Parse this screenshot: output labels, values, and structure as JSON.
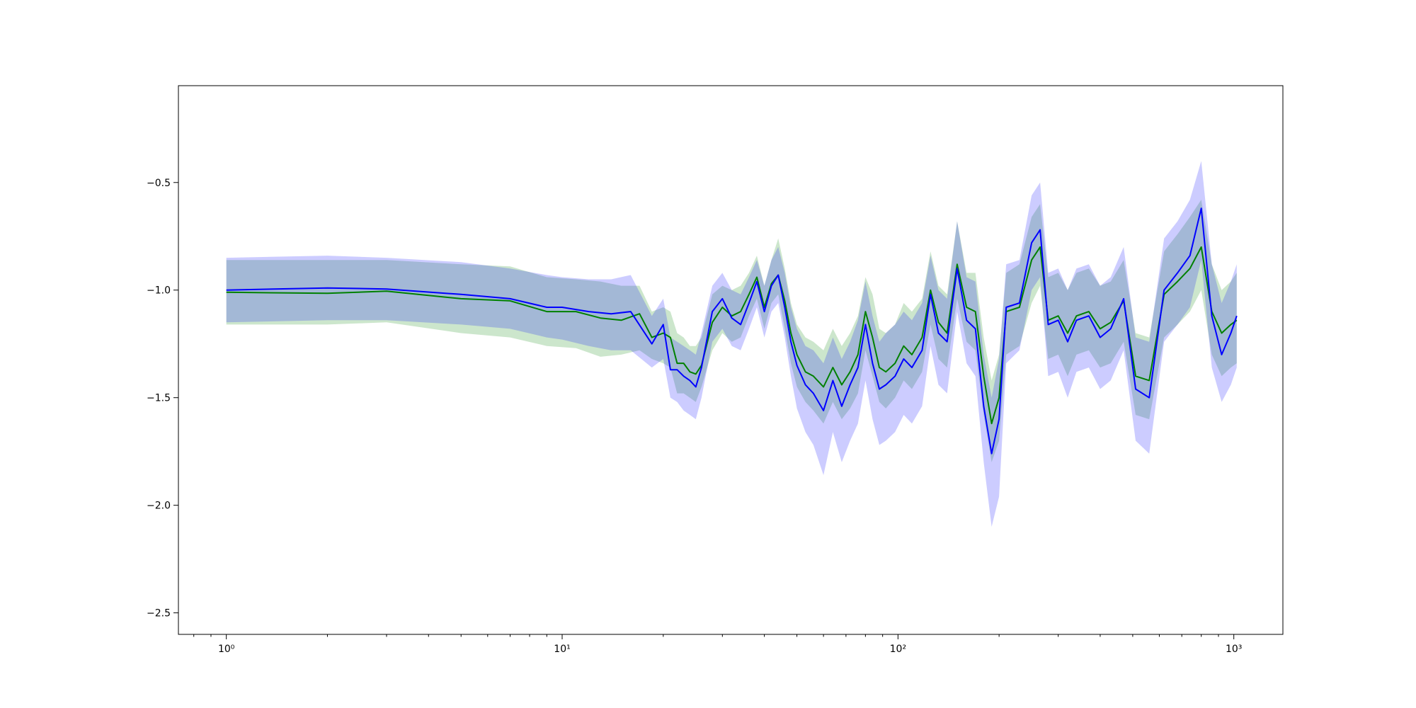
{
  "chart_data": {
    "type": "line",
    "xscale": "log",
    "xlim": [
      0.72,
      1400
    ],
    "ylim": [
      -2.6,
      -0.05
    ],
    "grid": false,
    "legend": "none",
    "title": "",
    "xlabel": "",
    "ylabel": "",
    "x_major_ticks": [
      {
        "value": 1,
        "label": "10⁰"
      },
      {
        "value": 10,
        "label": "10¹"
      },
      {
        "value": 100,
        "label": "10²"
      },
      {
        "value": 1000,
        "label": "10³"
      }
    ],
    "y_ticks": [
      {
        "value": -0.5,
        "label": "−0.5"
      },
      {
        "value": -1.0,
        "label": "−1.0"
      },
      {
        "value": -1.5,
        "label": "−1.5"
      },
      {
        "value": -2.0,
        "label": "−2.0"
      },
      {
        "value": -2.5,
        "label": "−2.5"
      }
    ],
    "colors": {
      "green_line": "#008000",
      "blue_line": "#0000ff",
      "green_band": "#008000",
      "blue_band": "#0000ff"
    },
    "series": [
      {
        "color": "#008000",
        "band_opacity": 0.2,
        "points": [
          [
            1,
            -1.01,
            -1.16,
            -0.86
          ],
          [
            2,
            -1.015,
            -1.16,
            -0.86
          ],
          [
            3,
            -1.005,
            -1.15,
            -0.86
          ],
          [
            5,
            -1.04,
            -1.2,
            -0.88
          ],
          [
            7,
            -1.05,
            -1.22,
            -0.89
          ],
          [
            9,
            -1.1,
            -1.26,
            -0.94
          ],
          [
            11,
            -1.1,
            -1.27,
            -0.95
          ],
          [
            13,
            -1.13,
            -1.31,
            -0.96
          ],
          [
            15,
            -1.14,
            -1.3,
            -0.98
          ],
          [
            17,
            -1.11,
            -1.28,
            -0.98
          ],
          [
            18.5,
            -1.22,
            -1.32,
            -1.1
          ],
          [
            20,
            -1.2,
            -1.34,
            -1.08
          ],
          [
            21,
            -1.22,
            -1.36,
            -1.1
          ],
          [
            22,
            -1.34,
            -1.48,
            -1.2
          ],
          [
            23,
            -1.34,
            -1.48,
            -1.22
          ],
          [
            24,
            -1.38,
            -1.5,
            -1.26
          ],
          [
            25,
            -1.39,
            -1.52,
            -1.26
          ],
          [
            26,
            -1.35,
            -1.45,
            -1.22
          ],
          [
            28,
            -1.15,
            -1.28,
            -1.02
          ],
          [
            30,
            -1.08,
            -1.2,
            -0.98
          ],
          [
            32,
            -1.12,
            -1.24,
            -1.0
          ],
          [
            34,
            -1.1,
            -1.22,
            -0.98
          ],
          [
            36,
            -1.02,
            -1.12,
            -0.92
          ],
          [
            38,
            -0.94,
            -1.04,
            -0.84
          ],
          [
            40,
            -1.08,
            -1.18,
            -0.98
          ],
          [
            42,
            -0.97,
            -1.06,
            -0.86
          ],
          [
            44,
            -0.93,
            -1.02,
            -0.76
          ],
          [
            46,
            -1.05,
            -1.18,
            -0.9
          ],
          [
            48,
            -1.2,
            -1.34,
            -1.06
          ],
          [
            50,
            -1.3,
            -1.45,
            -1.16
          ],
          [
            53,
            -1.38,
            -1.52,
            -1.22
          ],
          [
            56,
            -1.4,
            -1.56,
            -1.24
          ],
          [
            60,
            -1.45,
            -1.62,
            -1.28
          ],
          [
            64,
            -1.36,
            -1.52,
            -1.18
          ],
          [
            68,
            -1.44,
            -1.6,
            -1.26
          ],
          [
            72,
            -1.38,
            -1.55,
            -1.2
          ],
          [
            76,
            -1.3,
            -1.48,
            -1.12
          ],
          [
            80,
            -1.1,
            -1.28,
            -0.94
          ],
          [
            84,
            -1.22,
            -1.4,
            -1.02
          ],
          [
            88,
            -1.36,
            -1.52,
            -1.18
          ],
          [
            92,
            -1.38,
            -1.55,
            -1.2
          ],
          [
            98,
            -1.34,
            -1.5,
            -1.16
          ],
          [
            104,
            -1.26,
            -1.42,
            -1.06
          ],
          [
            110,
            -1.3,
            -1.46,
            -1.1
          ],
          [
            118,
            -1.22,
            -1.38,
            -1.04
          ],
          [
            125,
            -1.0,
            -1.16,
            -0.82
          ],
          [
            132,
            -1.15,
            -1.32,
            -0.98
          ],
          [
            140,
            -1.2,
            -1.36,
            -1.02
          ],
          [
            150,
            -0.88,
            -1.04,
            -0.68
          ],
          [
            160,
            -1.08,
            -1.24,
            -0.92
          ],
          [
            170,
            -1.1,
            -1.28,
            -0.92
          ],
          [
            180,
            -1.4,
            -1.58,
            -1.22
          ],
          [
            190,
            -1.62,
            -1.8,
            -1.42
          ],
          [
            200,
            -1.5,
            -1.7,
            -1.3
          ],
          [
            210,
            -1.1,
            -1.3,
            -0.92
          ],
          [
            230,
            -1.08,
            -1.26,
            -0.88
          ],
          [
            250,
            -0.86,
            -1.06,
            -0.66
          ],
          [
            265,
            -0.8,
            -0.98,
            -0.6
          ],
          [
            280,
            -1.14,
            -1.32,
            -0.94
          ],
          [
            300,
            -1.12,
            -1.3,
            -0.92
          ],
          [
            320,
            -1.2,
            -1.4,
            -1.0
          ],
          [
            340,
            -1.12,
            -1.3,
            -0.92
          ],
          [
            370,
            -1.1,
            -1.28,
            -0.9
          ],
          [
            400,
            -1.18,
            -1.36,
            -0.98
          ],
          [
            430,
            -1.15,
            -1.34,
            -0.96
          ],
          [
            470,
            -1.05,
            -1.24,
            -0.86
          ],
          [
            510,
            -1.4,
            -1.58,
            -1.2
          ],
          [
            560,
            -1.42,
            -1.6,
            -1.22
          ],
          [
            620,
            -1.02,
            -1.22,
            -0.82
          ],
          [
            680,
            -0.96,
            -1.16,
            -0.74
          ],
          [
            740,
            -0.9,
            -1.1,
            -0.66
          ],
          [
            800,
            -0.8,
            -1.0,
            -0.58
          ],
          [
            860,
            -1.1,
            -1.3,
            -0.88
          ],
          [
            920,
            -1.2,
            -1.4,
            -1.0
          ],
          [
            980,
            -1.16,
            -1.36,
            -0.96
          ],
          [
            1020,
            -1.14,
            -1.34,
            -0.92
          ]
        ]
      },
      {
        "color": "#0000ff",
        "band_opacity": 0.2,
        "points": [
          [
            1,
            -1.0,
            -1.15,
            -0.85
          ],
          [
            2,
            -0.99,
            -1.14,
            -0.84
          ],
          [
            3,
            -0.995,
            -1.14,
            -0.85
          ],
          [
            5,
            -1.02,
            -1.16,
            -0.87
          ],
          [
            7,
            -1.04,
            -1.18,
            -0.9
          ],
          [
            9,
            -1.08,
            -1.22,
            -0.93
          ],
          [
            10,
            -1.08,
            -1.23,
            -0.94
          ],
          [
            12,
            -1.1,
            -1.26,
            -0.95
          ],
          [
            14,
            -1.11,
            -1.28,
            -0.95
          ],
          [
            16,
            -1.1,
            -1.28,
            -0.93
          ],
          [
            18.5,
            -1.25,
            -1.36,
            -1.12
          ],
          [
            20,
            -1.16,
            -1.32,
            -1.04
          ],
          [
            21,
            -1.37,
            -1.5,
            -1.22
          ],
          [
            22,
            -1.37,
            -1.52,
            -1.24
          ],
          [
            23,
            -1.4,
            -1.56,
            -1.26
          ],
          [
            24,
            -1.42,
            -1.58,
            -1.28
          ],
          [
            25,
            -1.45,
            -1.6,
            -1.3
          ],
          [
            26,
            -1.36,
            -1.5,
            -1.2
          ],
          [
            28,
            -1.1,
            -1.24,
            -0.98
          ],
          [
            30,
            -1.04,
            -1.18,
            -0.92
          ],
          [
            32,
            -1.13,
            -1.26,
            -1.0
          ],
          [
            34,
            -1.16,
            -1.28,
            -1.02
          ],
          [
            36,
            -1.06,
            -1.18,
            -0.94
          ],
          [
            38,
            -0.96,
            -1.08,
            -0.86
          ],
          [
            40,
            -1.1,
            -1.22,
            -0.98
          ],
          [
            42,
            -0.98,
            -1.1,
            -0.86
          ],
          [
            44,
            -0.93,
            -1.06,
            -0.8
          ],
          [
            46,
            -1.08,
            -1.22,
            -0.92
          ],
          [
            48,
            -1.24,
            -1.4,
            -1.08
          ],
          [
            50,
            -1.35,
            -1.55,
            -1.18
          ],
          [
            53,
            -1.44,
            -1.66,
            -1.26
          ],
          [
            56,
            -1.48,
            -1.72,
            -1.28
          ],
          [
            60,
            -1.56,
            -1.86,
            -1.34
          ],
          [
            64,
            -1.42,
            -1.66,
            -1.22
          ],
          [
            68,
            -1.54,
            -1.8,
            -1.32
          ],
          [
            72,
            -1.44,
            -1.7,
            -1.24
          ],
          [
            76,
            -1.36,
            -1.62,
            -1.14
          ],
          [
            80,
            -1.16,
            -1.42,
            -0.96
          ],
          [
            84,
            -1.34,
            -1.6,
            -1.12
          ],
          [
            88,
            -1.46,
            -1.72,
            -1.24
          ],
          [
            92,
            -1.44,
            -1.7,
            -1.2
          ],
          [
            98,
            -1.4,
            -1.66,
            -1.16
          ],
          [
            104,
            -1.32,
            -1.58,
            -1.1
          ],
          [
            110,
            -1.36,
            -1.62,
            -1.14
          ],
          [
            118,
            -1.28,
            -1.54,
            -1.06
          ],
          [
            125,
            -1.02,
            -1.26,
            -0.84
          ],
          [
            132,
            -1.2,
            -1.44,
            -1.0
          ],
          [
            140,
            -1.24,
            -1.48,
            -1.04
          ],
          [
            150,
            -0.9,
            -1.1,
            -0.68
          ],
          [
            160,
            -1.14,
            -1.34,
            -0.94
          ],
          [
            170,
            -1.18,
            -1.4,
            -0.96
          ],
          [
            180,
            -1.54,
            -1.8,
            -1.3
          ],
          [
            190,
            -1.76,
            -2.1,
            -1.5
          ],
          [
            200,
            -1.6,
            -1.96,
            -1.32
          ],
          [
            210,
            -1.08,
            -1.34,
            -0.88
          ],
          [
            230,
            -1.06,
            -1.28,
            -0.86
          ],
          [
            250,
            -0.78,
            -1.0,
            -0.56
          ],
          [
            265,
            -0.72,
            -0.94,
            -0.5
          ],
          [
            280,
            -1.16,
            -1.4,
            -0.92
          ],
          [
            300,
            -1.14,
            -1.38,
            -0.9
          ],
          [
            320,
            -1.24,
            -1.5,
            -1.0
          ],
          [
            340,
            -1.14,
            -1.38,
            -0.9
          ],
          [
            370,
            -1.12,
            -1.36,
            -0.88
          ],
          [
            400,
            -1.22,
            -1.46,
            -0.98
          ],
          [
            430,
            -1.18,
            -1.42,
            -0.94
          ],
          [
            470,
            -1.04,
            -1.28,
            -0.8
          ],
          [
            510,
            -1.46,
            -1.7,
            -1.22
          ],
          [
            560,
            -1.5,
            -1.76,
            -1.24
          ],
          [
            620,
            -1.0,
            -1.24,
            -0.76
          ],
          [
            680,
            -0.92,
            -1.16,
            -0.68
          ],
          [
            740,
            -0.84,
            -1.08,
            -0.58
          ],
          [
            800,
            -0.62,
            -0.86,
            -0.4
          ],
          [
            860,
            -1.12,
            -1.36,
            -0.88
          ],
          [
            920,
            -1.3,
            -1.52,
            -1.06
          ],
          [
            980,
            -1.2,
            -1.44,
            -0.96
          ],
          [
            1020,
            -1.12,
            -1.36,
            -0.88
          ]
        ]
      }
    ]
  }
}
